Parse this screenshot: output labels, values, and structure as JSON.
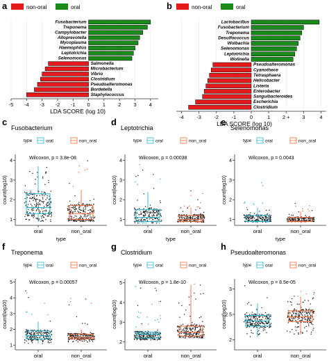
{
  "colors": {
    "non_oral": "#e41a1c",
    "oral": "#1a8a1a",
    "box_oral": "#29b6d1",
    "box_non_oral": "#f26b3a",
    "points": "#222222",
    "axis": "#333333"
  },
  "chart_data": [
    {
      "panel": "a",
      "type": "bar",
      "orientation": "horizontal",
      "legend": [
        "non-oral",
        "oral"
      ],
      "categories": [
        "Fusobacterium",
        "Treponema",
        "Campylobacter",
        "Alloprevotella",
        "Mycoplasma",
        "Haemophilus",
        "Leptotrichia",
        "Selenomonas",
        "Salmonella",
        "Microbacterium",
        "Vibrio",
        "Clostridium",
        "Pseudoalteromonas",
        "Bordetella",
        "Staphylococcus"
      ],
      "groups": [
        "oral",
        "oral",
        "oral",
        "oral",
        "oral",
        "oral",
        "oral",
        "oral",
        "non-oral",
        "non-oral",
        "non-oral",
        "non-oral",
        "non-oral",
        "non-oral",
        "non-oral"
      ],
      "values": [
        4.0,
        3.8,
        3.5,
        3.3,
        3.2,
        3.0,
        2.9,
        2.8,
        -2.6,
        -2.8,
        -3.0,
        -3.1,
        -3.3,
        -3.5,
        -4.0
      ],
      "xlabel": "LDA SCORE (log 10)",
      "xticks": [
        -5,
        -4,
        -3,
        -2,
        -1,
        0,
        1,
        2,
        3,
        4
      ],
      "xlim": [
        -5,
        4.5
      ]
    },
    {
      "panel": "b",
      "type": "bar",
      "orientation": "horizontal",
      "legend": [
        "non-oral",
        "oral"
      ],
      "categories": [
        "Lactobacillus",
        "Fusobacterium",
        "Treponema",
        "Desulfococcus",
        "Wolbachia",
        "Selenomonas",
        "Leptotrichia",
        "Wolinella",
        "Pseudoalteromonas",
        "Cyanothece",
        "Tetrasphaera",
        "Helicobacter",
        "Listeria",
        "Enterobacter",
        "Sanguibacteroides",
        "Escherichia",
        "Clostridium"
      ],
      "groups": [
        "oral",
        "oral",
        "oral",
        "oral",
        "oral",
        "oral",
        "oral",
        "oral",
        "non-oral",
        "non-oral",
        "non-oral",
        "non-oral",
        "non-oral",
        "non-oral",
        "non-oral",
        "non-oral",
        "non-oral"
      ],
      "values": [
        3.9,
        3.0,
        2.9,
        2.8,
        2.7,
        2.6,
        2.5,
        2.4,
        -2.2,
        -2.3,
        -2.4,
        -2.5,
        -2.6,
        -2.7,
        -2.8,
        -3.2,
        -3.6
      ],
      "xlabel": "LDA SCORE (log 10)",
      "xticks": [
        -4,
        -3,
        -2,
        -1,
        0,
        1,
        2,
        3,
        4
      ],
      "xtick_labels": [
        "-4",
        "-3",
        "-2",
        "-1",
        "0",
        "1",
        "2 +",
        "3",
        "4"
      ],
      "xlim": [
        -4.3,
        4.3
      ]
    },
    {
      "panel": "c",
      "type": "box",
      "title": "Fusobacterium",
      "legend_title": "type",
      "legend": [
        "oral",
        "non_oral"
      ],
      "annotation": "Wilcoxon, p = 3.8e-08",
      "categories": [
        "oral",
        "non_oral"
      ],
      "xlabel": "type",
      "ylabel": "count(log10)",
      "ylim": [
        0.7,
        4.3
      ],
      "yticks": [
        1,
        2,
        3,
        4
      ],
      "boxes": [
        {
          "name": "oral",
          "min": 0.9,
          "q1": 1.3,
          "median": 1.6,
          "q3": 2.3,
          "max": 3.7
        },
        {
          "name": "non_oral",
          "min": 0.9,
          "q1": 1.0,
          "median": 1.3,
          "q3": 1.7,
          "max": 2.5
        }
      ],
      "point_range": [
        [
          0.8,
          3.9
        ],
        [
          0.8,
          4.1
        ]
      ]
    },
    {
      "panel": "d",
      "type": "box",
      "title": "Leptotrichia",
      "legend_title": "type",
      "legend": [
        "oral",
        "non_oral"
      ],
      "annotation": "Wilcoxon, p = 0.00038",
      "categories": [
        "oral",
        "non_oral"
      ],
      "xlabel": "type",
      "ylabel": "count(log10)",
      "ylim": [
        0.7,
        4.3
      ],
      "yticks": [
        1,
        2,
        3,
        4
      ],
      "boxes": [
        {
          "name": "oral",
          "min": 0.9,
          "q1": 0.9,
          "median": 1.1,
          "q3": 1.5,
          "max": 2.4
        },
        {
          "name": "non_oral",
          "min": 0.9,
          "q1": 0.9,
          "median": 1.0,
          "q3": 1.2,
          "max": 1.6
        }
      ],
      "point_range": [
        [
          0.8,
          4.0
        ],
        [
          0.8,
          2.5
        ]
      ]
    },
    {
      "panel": "e",
      "type": "box",
      "title": "Selenomonas",
      "legend_title": "type",
      "legend": [
        "oral",
        "non_oral"
      ],
      "annotation": "Wilcoxon, p = 0.0043",
      "categories": [
        "oral",
        "non_oral"
      ],
      "xlabel": "type",
      "ylabel": "count(log10)",
      "ylim": [
        0.7,
        4.3
      ],
      "yticks": [
        1,
        2,
        3,
        4
      ],
      "boxes": [
        {
          "name": "oral",
          "min": 0.9,
          "q1": 0.9,
          "median": 0.9,
          "q3": 1.2,
          "max": 1.6
        },
        {
          "name": "non_oral",
          "min": 0.9,
          "q1": 0.9,
          "median": 0.9,
          "q3": 1.1,
          "max": 1.4
        }
      ],
      "point_range": [
        [
          0.8,
          3.0
        ],
        [
          0.8,
          1.9
        ]
      ]
    },
    {
      "panel": "f",
      "type": "box",
      "title": "Treponema",
      "legend_title": "type",
      "legend": [
        "oral",
        "non_oral"
      ],
      "annotation": "Wilcoxon, p = 0.00057",
      "categories": [
        "oral",
        "non_oral"
      ],
      "xlabel": "type",
      "ylabel": "count(log10)",
      "ylim": [
        0.7,
        5.2
      ],
      "yticks": [
        1,
        2,
        3,
        4,
        5
      ],
      "boxes": [
        {
          "name": "oral",
          "min": 1.1,
          "q1": 1.4,
          "median": 1.6,
          "q3": 1.9,
          "max": 2.5
        },
        {
          "name": "non_oral",
          "min": 1.2,
          "q1": 1.4,
          "median": 1.5,
          "q3": 1.7,
          "max": 2.0
        }
      ],
      "point_range": [
        [
          1.0,
          4.9
        ],
        [
          1.0,
          4.7
        ]
      ]
    },
    {
      "panel": "g",
      "type": "box",
      "title": "Clostridium",
      "legend_title": "type",
      "legend": [
        "oral",
        "non_oral"
      ],
      "annotation": "Wilcoxon, p = 1.8e-10",
      "categories": [
        "oral",
        "non_oral"
      ],
      "xlabel": "type",
      "ylabel": "count(log10)",
      "ylim": [
        1.6,
        5.2
      ],
      "yticks": [
        2,
        3,
        4,
        5
      ],
      "boxes": [
        {
          "name": "oral",
          "min": 2.1,
          "q1": 2.2,
          "median": 2.4,
          "q3": 2.5,
          "max": 2.6
        },
        {
          "name": "non_oral",
          "min": 2.2,
          "q1": 2.3,
          "median": 2.5,
          "q3": 2.8,
          "max": 4.9
        }
      ],
      "point_range": [
        [
          2.0,
          4.9
        ],
        [
          2.0,
          5.0
        ]
      ]
    },
    {
      "panel": "h",
      "type": "box",
      "title": "Pseudoalteromonas",
      "legend_title": "type",
      "legend": [
        "oral",
        "non_oral"
      ],
      "annotation": "Wilcoxon, p = 8.5e-05",
      "categories": [
        "oral",
        "non_oral"
      ],
      "xlabel": "type",
      "ylabel": "count(log10)",
      "ylim": [
        1.8,
        3.2
      ],
      "yticks": [
        2.0,
        2.5,
        3.0
      ],
      "boxes": [
        {
          "name": "oral",
          "min": 2.05,
          "q1": 2.27,
          "median": 2.37,
          "q3": 2.48,
          "max": 2.72
        },
        {
          "name": "non_oral",
          "min": 2.1,
          "q1": 2.36,
          "median": 2.45,
          "q3": 2.57,
          "max": 2.85
        }
      ],
      "point_range": [
        [
          1.9,
          3.1
        ],
        [
          2.0,
          3.0
        ]
      ]
    }
  ]
}
